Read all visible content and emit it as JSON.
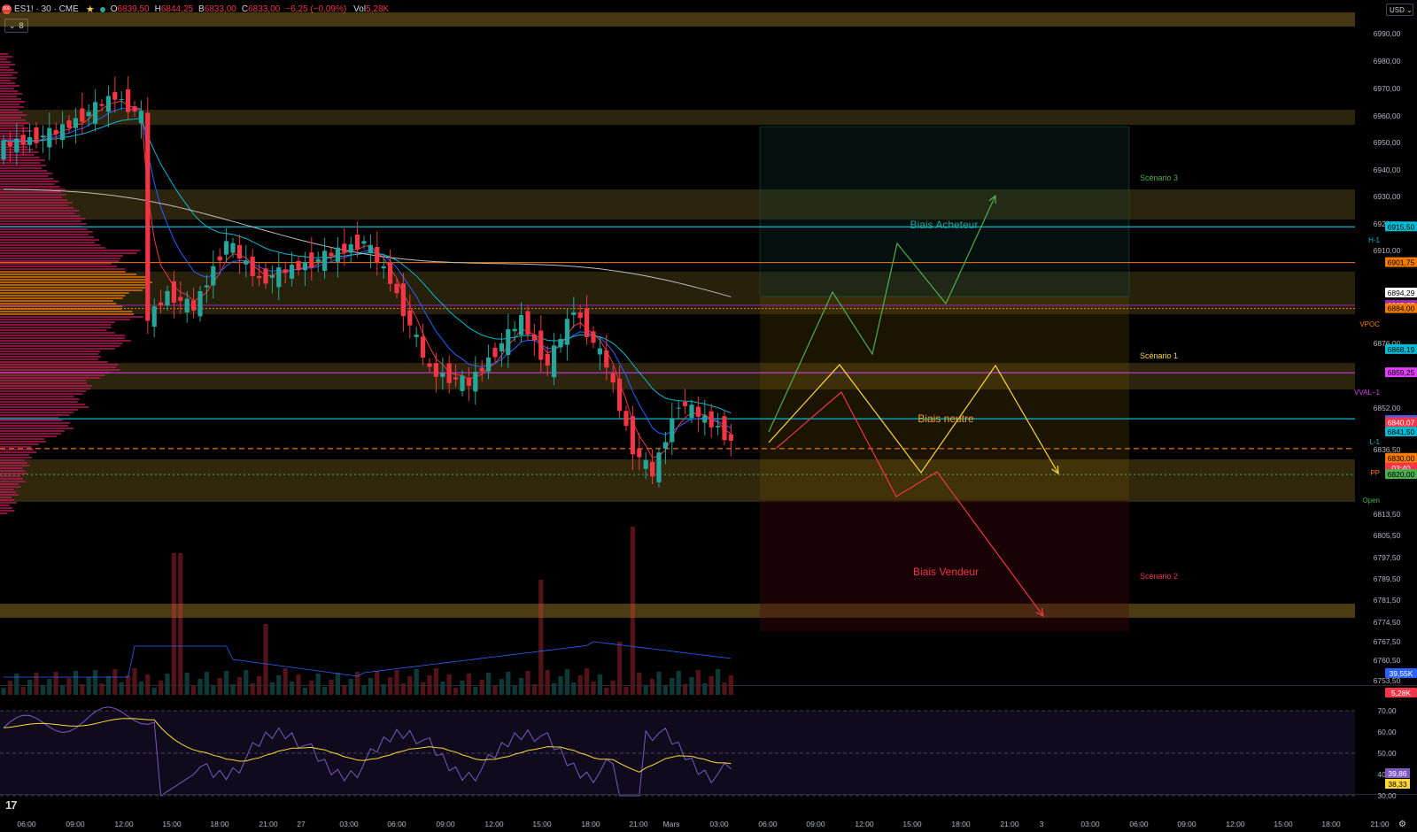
{
  "header": {
    "logo": "500",
    "symbol": "ES1! · 30 · CME",
    "open_label": "O",
    "open": "6839,50",
    "high_label": "H",
    "high": "6844,25",
    "low_label": "B",
    "low": "6833,00",
    "close_label": "C",
    "close": "6833,00",
    "change": "−6,25 (−0,09%)",
    "vol_label": "Vol",
    "vol": "5,28K",
    "indicator_count": "8",
    "currency": "USD"
  },
  "price_axis": {
    "ticks": [
      "6990,00",
      "6980,00",
      "6970,00",
      "6960,00",
      "6950,00",
      "6940,00",
      "6930,00",
      "6920,00",
      "6910,00",
      "6876,00",
      "6852,00",
      "6836,50",
      "6813,50",
      "6805,50",
      "6797,50",
      "6789,50",
      "6781,50",
      "6774,50",
      "6767,50",
      "6760,50",
      "6753,50"
    ],
    "badges": [
      {
        "text": "6915,50",
        "bg": "#00bcd4",
        "fg": "#000000"
      },
      {
        "text": "6901,75",
        "bg": "#f57c00",
        "fg": "#000000"
      },
      {
        "text": "6894,29",
        "bg": "#ffffff",
        "fg": "#000000"
      },
      {
        "text": "6885,25",
        "bg": "#9c27b0",
        "fg": "#ffffff"
      },
      {
        "text": "6884,00",
        "bg": "#f57c00",
        "fg": "#000000"
      },
      {
        "text": "6868,19",
        "bg": "#00bcd4",
        "fg": "#000000"
      },
      {
        "text": "6859,25",
        "bg": "#e040fb",
        "fg": "#000000"
      },
      {
        "text": "6848,14",
        "bg": "#2962ff",
        "fg": "#ffffff"
      },
      {
        "text": "6841,50",
        "bg": "#00bcd4",
        "fg": "#000000"
      },
      {
        "text": "6840,07",
        "bg": "#f23645",
        "fg": "#ffffff"
      },
      {
        "text": "6833,00",
        "bg": "#f23645",
        "fg": "#ffffff"
      },
      {
        "text": "03:40",
        "bg": "#f23645",
        "fg": "#ffffff"
      },
      {
        "text": "6830,00",
        "bg": "#f57c00",
        "fg": "#000000"
      },
      {
        "text": "6820,00",
        "bg": "#4caf50",
        "fg": "#000000"
      },
      {
        "text": "39,55K",
        "bg": "#2962ff",
        "fg": "#ffffff"
      },
      {
        "text": "5,28K",
        "bg": "#f23645",
        "fg": "#ffffff"
      }
    ],
    "line_labels": [
      {
        "text": "H-1",
        "color": "#00bcd4"
      },
      {
        "text": "VPOC",
        "color": "#f57c00"
      },
      {
        "text": "VVAL−1",
        "color": "#e040fb"
      },
      {
        "text": "L-1",
        "color": "#00bcd4"
      },
      {
        "text": "PP",
        "color": "#f57c00"
      },
      {
        "text": "Open",
        "color": "#4caf50"
      }
    ]
  },
  "rsi_axis": {
    "ticks": [
      "70,00",
      "60,00",
      "50,00",
      "40,00",
      "30,00"
    ],
    "badges": [
      {
        "text": "39,86",
        "bg": "#7e57c2",
        "fg": "#ffffff"
      },
      {
        "text": "38,33",
        "bg": "#fdd835",
        "fg": "#000000"
      }
    ]
  },
  "time_axis": {
    "labels": [
      "06:00",
      "09:00",
      "12:00",
      "15:00",
      "18:00",
      "21:00",
      "27",
      "03:00",
      "06:00",
      "09:00",
      "12:00",
      "15:00",
      "18:00",
      "21:00",
      "Mars",
      "03:00",
      "06:00",
      "09:00",
      "12:00",
      "15:00",
      "18:00",
      "21:00",
      "3",
      "03:00",
      "06:00",
      "09:00",
      "12:00",
      "15:00",
      "18:00",
      "21:00"
    ]
  },
  "annotations": {
    "biais_acheteur": "Biais Acheteur",
    "biais_neutre": "Biais neutre",
    "biais_vendeur": "Biais Vendeur",
    "scenario_1": "Scénario 1",
    "scenario_2": "Scénario 2",
    "scenario_3": "Scénario 3"
  },
  "colors": {
    "up": "#26a69a",
    "down": "#f23645",
    "bullish_path": "#4caf50",
    "neutral_path": "#fdd835",
    "bearish_path": "#f23645",
    "ema_fast": "#f23645",
    "ema_mid": "#2962ff",
    "ema_slow": "#00bcd4",
    "sma_long": "#bdbdbd",
    "rsi": "#7e57c2",
    "rsi_ma": "#fdd835",
    "zone": "#f5c542"
  }
}
